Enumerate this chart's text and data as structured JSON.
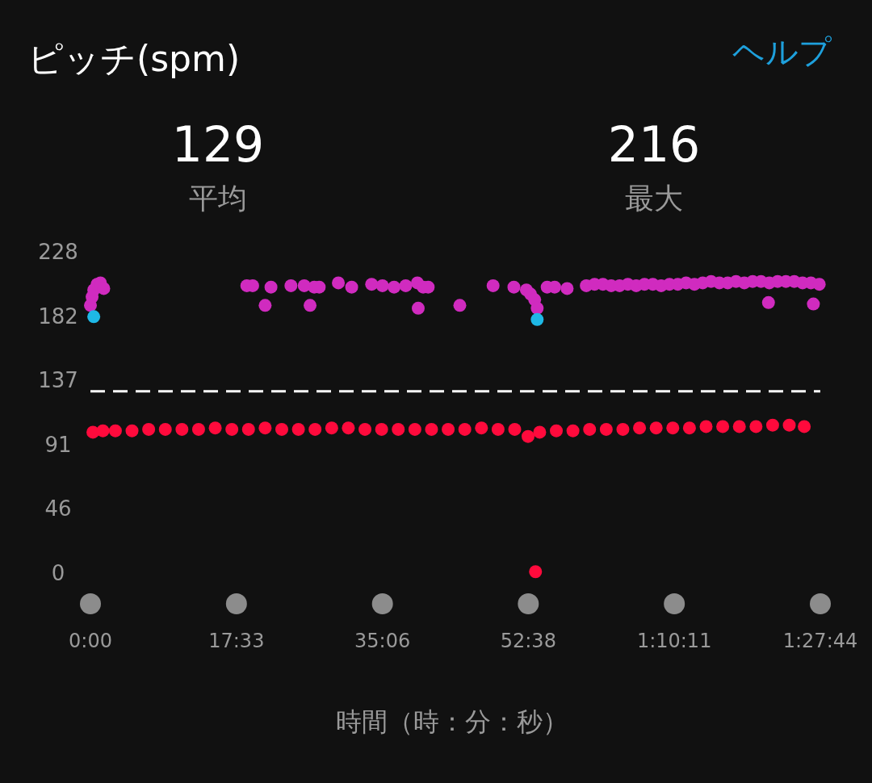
{
  "chart_data": {
    "type": "scatter",
    "title": "ピッチ(spm)",
    "xlabel": "時間（時：分：秒）",
    "annotations": [
      "ヘルプ",
      "129",
      "平均",
      "216",
      "最大"
    ],
    "xlim": [
      0,
      87.733
    ],
    "ylim": [
      0,
      228
    ],
    "xticks": [
      {
        "value": 0,
        "label": "0:00"
      },
      {
        "value": 17.55,
        "label": "17:33"
      },
      {
        "value": 35.1,
        "label": "35:06"
      },
      {
        "value": 52.633,
        "label": "52:38"
      },
      {
        "value": 70.183,
        "label": "1:10:11"
      },
      {
        "value": 87.733,
        "label": "1:27:44"
      }
    ],
    "yticks": [
      0,
      {
        "value": 45.6,
        "label": "46"
      },
      {
        "value": 91.2,
        "label": "91"
      },
      {
        "value": 136.8,
        "label": "137"
      },
      {
        "value": 182.4,
        "label": "182"
      },
      228
    ],
    "marker": "circle",
    "legend": false,
    "grid": false,
    "ref_lines": [
      {
        "axis": "y",
        "value": 129,
        "color": "#ffffff",
        "line_style": "dashed"
      }
    ],
    "series": [
      {
        "color": "#ff0a3c",
        "x": [
          0.3,
          1.5,
          3,
          5,
          7,
          9,
          11,
          13,
          15,
          17,
          19,
          21,
          23,
          25,
          27,
          29,
          31,
          33,
          35,
          37,
          39,
          41,
          43,
          45,
          47,
          49,
          51,
          52.6,
          54,
          56,
          58,
          60,
          62,
          64,
          66,
          68,
          70,
          72,
          74,
          76,
          78,
          80,
          82,
          84,
          85.8,
          53.5
        ],
        "values": [
          100,
          101,
          101,
          101,
          102,
          102,
          102,
          102,
          103,
          102,
          102,
          103,
          102,
          102,
          102,
          103,
          103,
          102,
          102,
          102,
          102,
          102,
          102,
          102,
          103,
          102,
          102,
          97,
          100,
          101,
          101,
          102,
          102,
          102,
          103,
          103,
          103,
          103,
          104,
          104,
          104,
          104,
          105,
          105,
          104,
          1
        ]
      },
      {
        "color": "#d02bbf",
        "x": [
          0,
          0.2,
          0.4,
          0.8,
          1.2,
          1.6,
          18.8,
          19.5,
          21,
          21.7,
          24.1,
          25.7,
          26.4,
          26.9,
          27.5,
          29.8,
          31.4,
          33.8,
          35.1,
          36.5,
          37.9,
          39.3,
          39.4,
          40,
          40.6,
          44.4,
          48.4,
          50.9,
          52.4,
          52.9,
          53.4,
          53.7,
          54.9,
          55.8,
          57.3,
          59.6,
          60.6,
          61.6,
          62.6,
          63.6,
          64.6,
          65.6,
          66.6,
          67.6,
          68.6,
          69.6,
          70.6,
          71.6,
          72.6,
          73.6,
          74.6,
          75.6,
          76.6,
          77.6,
          78.6,
          79.6,
          80.6,
          81.5,
          81.6,
          82.6,
          83.6,
          84.6,
          85.6,
          86.6,
          86.9,
          87.6
        ],
        "values": [
          190,
          196,
          201,
          205,
          206,
          202,
          204,
          204,
          190,
          203,
          204,
          204,
          190,
          203,
          203,
          206,
          203,
          205,
          204,
          203,
          204,
          206,
          188,
          203,
          203,
          190,
          204,
          203,
          201,
          198,
          194,
          188,
          203,
          203,
          202,
          204,
          205,
          205,
          204,
          204,
          205,
          204,
          205,
          205,
          204,
          205,
          205,
          206,
          205,
          206,
          207,
          206,
          206,
          207,
          206,
          207,
          207,
          192,
          206,
          207,
          207,
          207,
          206,
          206,
          191,
          205
        ]
      },
      {
        "color": "#1eb8e6",
        "x": [
          0.4,
          53.7
        ],
        "values": [
          182,
          180
        ]
      }
    ]
  }
}
